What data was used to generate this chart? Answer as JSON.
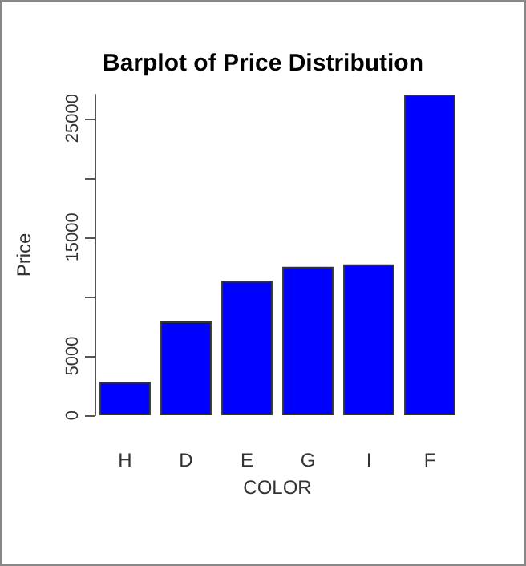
{
  "chart_data": {
    "type": "bar",
    "title": "Barplot of Price Distribution",
    "xlabel": "COLOR",
    "ylabel": "Price",
    "categories": [
      "H",
      "D",
      "E",
      "G",
      "I",
      "F"
    ],
    "values": [
      2800,
      7900,
      11300,
      12500,
      12700,
      27000
    ],
    "color": "#0000ff",
    "ylim": [
      0,
      27000
    ],
    "yticks": [
      0,
      5000,
      {
        "value": 10000,
        "label": null
      },
      15000,
      {
        "value": 20000,
        "label": null
      },
      25000
    ],
    "grid": false
  }
}
